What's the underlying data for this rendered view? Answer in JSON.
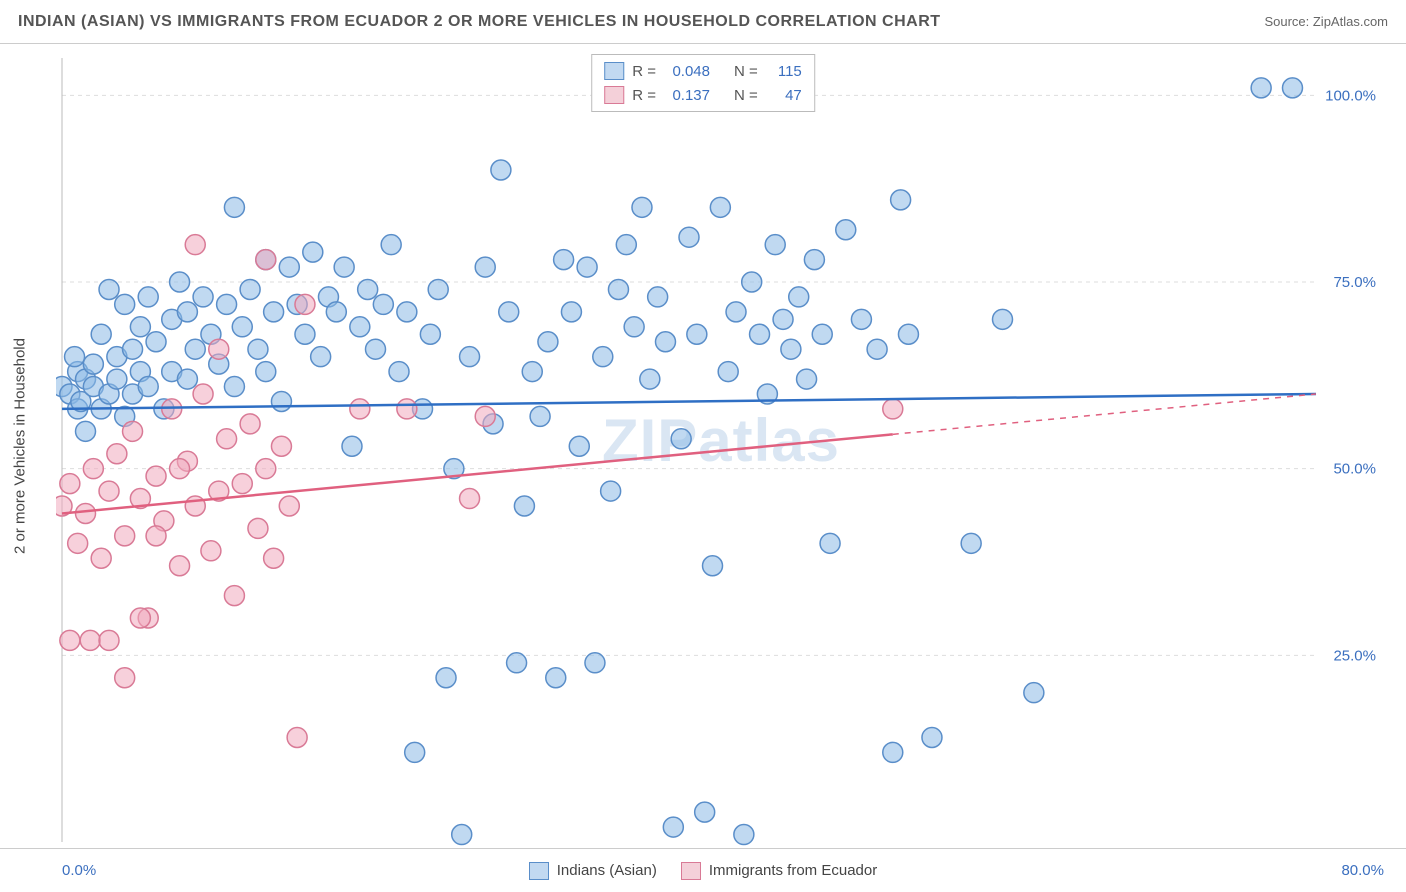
{
  "title": "INDIAN (ASIAN) VS IMMIGRANTS FROM ECUADOR 2 OR MORE VEHICLES IN HOUSEHOLD CORRELATION CHART",
  "source": "Source: ZipAtlas.com",
  "watermark": "ZIPatlas",
  "ylabel": "2 or more Vehicles in Household",
  "colors": {
    "blue_fill": "rgba(140,185,230,0.55)",
    "blue_stroke": "#5a8ec9",
    "pink_fill": "rgba(240,170,190,0.55)",
    "pink_stroke": "#d97a96",
    "blue_line": "#2f6fc4",
    "pink_line": "#e0607f",
    "grid": "#dddddd",
    "axis": "#bbbbbb",
    "tick_text": "#3b6fbf",
    "title_text": "#555555"
  },
  "chart": {
    "type": "scatter",
    "xlim": [
      0,
      80
    ],
    "ylim": [
      0,
      105
    ],
    "yticks": [
      25,
      50,
      75,
      100
    ],
    "ytick_labels": [
      "25.0%",
      "50.0%",
      "75.0%",
      "100.0%"
    ],
    "xtick_left": "0.0%",
    "xtick_right": "80.0%",
    "marker_radius": 10,
    "marker_stroke_width": 1.5,
    "line_width": 2.5,
    "series": [
      {
        "name": "Indians (Asian)",
        "color_key": "blue",
        "R": "0.048",
        "N": "115",
        "trend": {
          "x1": 0,
          "y1": 58,
          "x2": 80,
          "y2": 60,
          "dash_after_x": null
        },
        "points": [
          [
            0,
            61
          ],
          [
            0.5,
            60
          ],
          [
            1,
            58
          ],
          [
            1,
            63
          ],
          [
            1.5,
            62
          ],
          [
            1.2,
            59
          ],
          [
            0.8,
            65
          ],
          [
            1.5,
            55
          ],
          [
            2,
            61
          ],
          [
            2,
            64
          ],
          [
            2.5,
            68
          ],
          [
            2.5,
            58
          ],
          [
            3,
            60
          ],
          [
            3,
            74
          ],
          [
            3.5,
            62
          ],
          [
            3.5,
            65
          ],
          [
            4,
            72
          ],
          [
            4,
            57
          ],
          [
            4.5,
            66
          ],
          [
            4.5,
            60
          ],
          [
            5,
            69
          ],
          [
            5,
            63
          ],
          [
            5.5,
            73
          ],
          [
            5.5,
            61
          ],
          [
            6,
            67
          ],
          [
            6.5,
            58
          ],
          [
            7,
            70
          ],
          [
            7,
            63
          ],
          [
            7.5,
            75
          ],
          [
            8,
            71
          ],
          [
            8,
            62
          ],
          [
            8.5,
            66
          ],
          [
            9,
            73
          ],
          [
            9.5,
            68
          ],
          [
            10,
            64
          ],
          [
            10.5,
            72
          ],
          [
            11,
            85
          ],
          [
            11,
            61
          ],
          [
            11.5,
            69
          ],
          [
            12,
            74
          ],
          [
            12.5,
            66
          ],
          [
            13,
            78
          ],
          [
            13,
            63
          ],
          [
            13.5,
            71
          ],
          [
            14,
            59
          ],
          [
            14.5,
            77
          ],
          [
            15,
            72
          ],
          [
            15.5,
            68
          ],
          [
            16,
            79
          ],
          [
            16.5,
            65
          ],
          [
            17,
            73
          ],
          [
            17.5,
            71
          ],
          [
            18,
            77
          ],
          [
            18.5,
            53
          ],
          [
            19,
            69
          ],
          [
            19.5,
            74
          ],
          [
            20,
            66
          ],
          [
            20.5,
            72
          ],
          [
            21,
            80
          ],
          [
            21.5,
            63
          ],
          [
            22,
            71
          ],
          [
            22.5,
            12
          ],
          [
            23,
            58
          ],
          [
            23.5,
            68
          ],
          [
            24,
            74
          ],
          [
            24.5,
            22
          ],
          [
            25,
            50
          ],
          [
            25.5,
            1
          ],
          [
            26,
            65
          ],
          [
            27,
            77
          ],
          [
            27.5,
            56
          ],
          [
            28,
            90
          ],
          [
            28.5,
            71
          ],
          [
            29,
            24
          ],
          [
            29.5,
            45
          ],
          [
            30,
            63
          ],
          [
            30.5,
            57
          ],
          [
            31,
            67
          ],
          [
            31.5,
            22
          ],
          [
            32,
            78
          ],
          [
            32.5,
            71
          ],
          [
            33,
            53
          ],
          [
            33.5,
            77
          ],
          [
            34,
            24
          ],
          [
            34.5,
            65
          ],
          [
            35,
            47
          ],
          [
            35.5,
            74
          ],
          [
            36,
            80
          ],
          [
            36.5,
            69
          ],
          [
            37,
            85
          ],
          [
            37.5,
            62
          ],
          [
            38,
            73
          ],
          [
            38.5,
            67
          ],
          [
            39,
            2
          ],
          [
            39.5,
            54
          ],
          [
            40,
            81
          ],
          [
            40.5,
            68
          ],
          [
            41,
            4
          ],
          [
            41.5,
            37
          ],
          [
            42,
            85
          ],
          [
            42.5,
            63
          ],
          [
            43,
            71
          ],
          [
            43.5,
            1
          ],
          [
            44,
            75
          ],
          [
            44.5,
            68
          ],
          [
            45,
            60
          ],
          [
            45.5,
            80
          ],
          [
            46,
            70
          ],
          [
            46.5,
            66
          ],
          [
            47,
            73
          ],
          [
            47.5,
            62
          ],
          [
            48,
            78
          ],
          [
            48.5,
            68
          ],
          [
            49,
            40
          ],
          [
            50,
            82
          ],
          [
            51,
            70
          ],
          [
            52,
            66
          ],
          [
            53,
            12
          ],
          [
            53.5,
            86
          ],
          [
            54,
            68
          ],
          [
            55.5,
            14
          ],
          [
            58,
            40
          ],
          [
            60,
            70
          ],
          [
            62,
            20
          ],
          [
            76.5,
            101
          ],
          [
            78.5,
            101
          ]
        ]
      },
      {
        "name": "Immigrants from Ecuador",
        "color_key": "pink",
        "R": "0.137",
        "N": "47",
        "trend": {
          "x1": 0,
          "y1": 44,
          "x2": 80,
          "y2": 60,
          "dash_after_x": 53
        },
        "points": [
          [
            0,
            45
          ],
          [
            0.5,
            48
          ],
          [
            1,
            40
          ],
          [
            1.5,
            44
          ],
          [
            2,
            50
          ],
          [
            2.5,
            38
          ],
          [
            3,
            47
          ],
          [
            3.5,
            52
          ],
          [
            4,
            41
          ],
          [
            4.5,
            55
          ],
          [
            5,
            46
          ],
          [
            5.5,
            30
          ],
          [
            6,
            49
          ],
          [
            6.5,
            43
          ],
          [
            7,
            58
          ],
          [
            7.5,
            37
          ],
          [
            8,
            51
          ],
          [
            8.5,
            45
          ],
          [
            9,
            60
          ],
          [
            9.5,
            39
          ],
          [
            10,
            47
          ],
          [
            10.5,
            54
          ],
          [
            11,
            33
          ],
          [
            11.5,
            48
          ],
          [
            12,
            56
          ],
          [
            12.5,
            42
          ],
          [
            13,
            50
          ],
          [
            13.5,
            38
          ],
          [
            14,
            53
          ],
          [
            14.5,
            45
          ],
          [
            15,
            14
          ],
          [
            15.5,
            72
          ],
          [
            0.5,
            27
          ],
          [
            1.8,
            27
          ],
          [
            3,
            27
          ],
          [
            4,
            22
          ],
          [
            5,
            30
          ],
          [
            6,
            41
          ],
          [
            7.5,
            50
          ],
          [
            8.5,
            80
          ],
          [
            10,
            66
          ],
          [
            13,
            78
          ],
          [
            19,
            58
          ],
          [
            22,
            58
          ],
          [
            26,
            46
          ],
          [
            27,
            57
          ],
          [
            53,
            58
          ]
        ]
      }
    ]
  },
  "legend": {
    "series1": "Indians (Asian)",
    "series2": "Immigrants from Ecuador"
  }
}
